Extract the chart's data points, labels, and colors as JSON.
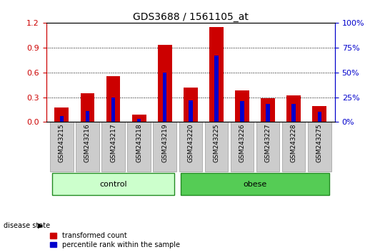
{
  "title": "GDS3688 / 1561105_at",
  "categories": [
    "GSM243215",
    "GSM243216",
    "GSM243217",
    "GSM243218",
    "GSM243219",
    "GSM243220",
    "GSM243225",
    "GSM243226",
    "GSM243227",
    "GSM243228",
    "GSM243275"
  ],
  "red_values": [
    0.18,
    0.35,
    0.55,
    0.09,
    0.93,
    0.42,
    1.15,
    0.38,
    0.29,
    0.32,
    0.19
  ],
  "blue_values": [
    0.07,
    0.13,
    0.3,
    0.04,
    0.6,
    0.26,
    0.8,
    0.25,
    0.22,
    0.22,
    0.12
  ],
  "ylim_left": [
    0,
    1.2
  ],
  "ylim_right": [
    0,
    100
  ],
  "yticks_left": [
    0,
    0.3,
    0.6,
    0.9,
    1.2
  ],
  "yticks_right": [
    0,
    25,
    50,
    75,
    100
  ],
  "bar_color_red": "#cc0000",
  "bar_color_blue": "#0000cc",
  "title_fontsize": 10,
  "axis_color_left": "#cc0000",
  "axis_color_right": "#0000cc",
  "tick_bg_color": "#cccccc",
  "tick_edge_color": "#999999",
  "legend_red": "transformed count",
  "legend_blue": "percentile rank within the sample",
  "control_color": "#ccffcc",
  "obese_color": "#55cc55",
  "group_edge_color": "#228B22",
  "disease_state_label": "disease state",
  "bar_width": 0.55,
  "blue_bar_width": 0.15,
  "control_indices": [
    0,
    1,
    2,
    3,
    4
  ],
  "obese_indices": [
    5,
    6,
    7,
    8,
    9,
    10
  ]
}
